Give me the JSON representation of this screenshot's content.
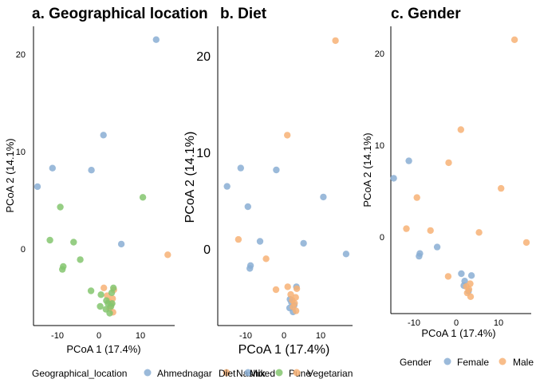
{
  "panels": {
    "a": {
      "title": "a. Geographical location",
      "xlabel": "PCoA 1 (17.4%)",
      "ylabel": "PCoA 2 (14.1%)",
      "xticks": [
        "-10",
        "0",
        "10"
      ],
      "yticks": [
        "0",
        "10",
        "20"
      ]
    },
    "b": {
      "title": "b. Diet",
      "xlabel": "PCoA 1 (17.4%)",
      "ylabel": "PCoA 2 (14.1%)",
      "xticks": [
        "-10",
        "0",
        "10"
      ],
      "yticks": [
        "0",
        "10",
        "20"
      ]
    },
    "c": {
      "title": "c. Gender",
      "xlabel": "PCoA 1 (17.4%)",
      "ylabel": "PCoA 2 (14.1%)",
      "xticks": [
        "-10",
        "0",
        "10"
      ],
      "yticks": [
        "0",
        "10",
        "20"
      ]
    }
  },
  "legend_geo": {
    "title": "Geographical_location",
    "items": [
      "Ahmednagar",
      "Nashik",
      "Pune"
    ]
  },
  "legend_diet": {
    "title": "Diet",
    "items": [
      "Mixed",
      "Vegetarian"
    ]
  },
  "legend_gender": {
    "title": "Gender",
    "items": [
      "Female",
      "Male"
    ]
  },
  "colors": {
    "blue": "#8aaed4",
    "orange": "#f7b276",
    "green": "#84c56f"
  },
  "chart_data": [
    {
      "type": "scatter",
      "title": "a. Geographical location",
      "xlabel": "PCoA 1 (17.4%)",
      "ylabel": "PCoA 2 (14.1%)",
      "xlim": [
        -15.5,
        18
      ],
      "ylim": [
        -8,
        23
      ],
      "legend": "bottom",
      "series": [
        {
          "name": "Ahmednagar",
          "points": [
            [
              13.8,
              21.5
            ],
            [
              1.1,
              11.7
            ],
            [
              -11.2,
              8.3
            ],
            [
              -1.8,
              8.1
            ],
            [
              -14.8,
              6.4
            ],
            [
              5.4,
              0.5
            ]
          ]
        },
        {
          "name": "Nashik",
          "points": [
            [
              16.6,
              -0.6
            ],
            [
              1.2,
              -4
            ],
            [
              3.6,
              -4.2
            ],
            [
              2,
              -4.8
            ],
            [
              3.3,
              -5.1
            ],
            [
              2.4,
              -5.4
            ],
            [
              3,
              -5.7
            ],
            [
              2.6,
              -6.1
            ],
            [
              3.4,
              -6.5
            ]
          ]
        },
        {
          "name": "Pune",
          "points": [
            [
              10.6,
              5.3
            ],
            [
              -9.3,
              4.3
            ],
            [
              -11.8,
              0.9
            ],
            [
              -6.1,
              0.7
            ],
            [
              -4.5,
              -1.1
            ],
            [
              -8.6,
              -1.8
            ],
            [
              -8.8,
              -2.1
            ],
            [
              -1.9,
              -4.3
            ],
            [
              0.5,
              -4.7
            ],
            [
              3.5,
              -4
            ],
            [
              1.8,
              -5.3
            ],
            [
              2.2,
              -5.6
            ],
            [
              2.9,
              -5.9
            ],
            [
              3.2,
              -5.6
            ],
            [
              1.7,
              -6.2
            ],
            [
              2.6,
              -6.6
            ],
            [
              0.3,
              -5.9
            ],
            [
              3.1,
              -4.5
            ]
          ]
        }
      ]
    },
    {
      "type": "scatter",
      "title": "b. Diet",
      "xlabel": "PCoA 1 (17.4%)",
      "ylabel": "PCoA 2 (14.1%)",
      "xlim": [
        -15.5,
        18
      ],
      "ylim": [
        -8,
        23
      ],
      "legend": "bottom",
      "series": [
        {
          "name": "Mixed",
          "points": [
            [
              -11.2,
              8.3
            ],
            [
              -1.8,
              8.1
            ],
            [
              -14.8,
              6.4
            ],
            [
              10.6,
              5.3
            ],
            [
              -9.3,
              4.3
            ],
            [
              -6.1,
              0.7
            ],
            [
              5.4,
              0.5
            ],
            [
              16.6,
              -0.6
            ],
            [
              -8.6,
              -1.8
            ],
            [
              -8.8,
              -2.1
            ],
            [
              3.5,
              -4
            ],
            [
              1.8,
              -5.3
            ],
            [
              2.2,
              -5.6
            ],
            [
              2.9,
              -5.9
            ],
            [
              1.7,
              -6.2
            ],
            [
              2.6,
              -6.6
            ]
          ]
        },
        {
          "name": "Vegetarian",
          "points": [
            [
              13.8,
              21.5
            ],
            [
              1.1,
              11.7
            ],
            [
              -11.8,
              0.9
            ],
            [
              -4.5,
              -1.1
            ],
            [
              -1.9,
              -4.3
            ],
            [
              1.2,
              -4
            ],
            [
              3.6,
              -4.2
            ],
            [
              2,
              -4.8
            ],
            [
              3.3,
              -5.1
            ],
            [
              2.4,
              -5.4
            ],
            [
              3,
              -5.7
            ],
            [
              2.6,
              -6.1
            ],
            [
              3.4,
              -6.5
            ]
          ]
        }
      ]
    },
    {
      "type": "scatter",
      "title": "c. Gender",
      "xlabel": "PCoA 1 (17.4%)",
      "ylabel": "PCoA 2 (14.1%)",
      "xlim": [
        -15.5,
        18
      ],
      "ylim": [
        -8,
        23
      ],
      "legend": "bottom",
      "series": [
        {
          "name": "Female",
          "points": [
            [
              -14.8,
              6.4
            ],
            [
              -11.2,
              8.3
            ],
            [
              -8.6,
              -1.8
            ],
            [
              -8.8,
              -2.1
            ],
            [
              -4.5,
              -1.1
            ],
            [
              1.2,
              -4
            ],
            [
              3.6,
              -4.2
            ],
            [
              2,
              -4.8
            ],
            [
              1.8,
              -5.3
            ],
            [
              2.9,
              -5.9
            ]
          ]
        },
        {
          "name": "Male",
          "points": [
            [
              13.8,
              21.5
            ],
            [
              1.1,
              11.7
            ],
            [
              -1.8,
              8.1
            ],
            [
              10.6,
              5.3
            ],
            [
              -9.3,
              4.3
            ],
            [
              -11.8,
              0.9
            ],
            [
              -6.1,
              0.7
            ],
            [
              5.4,
              0.5
            ],
            [
              16.6,
              -0.6
            ],
            [
              -1.9,
              -4.3
            ],
            [
              3.3,
              -5.1
            ],
            [
              2.4,
              -5.4
            ],
            [
              3,
              -5.7
            ],
            [
              2.6,
              -6.1
            ],
            [
              3.4,
              -6.5
            ]
          ]
        }
      ]
    }
  ]
}
